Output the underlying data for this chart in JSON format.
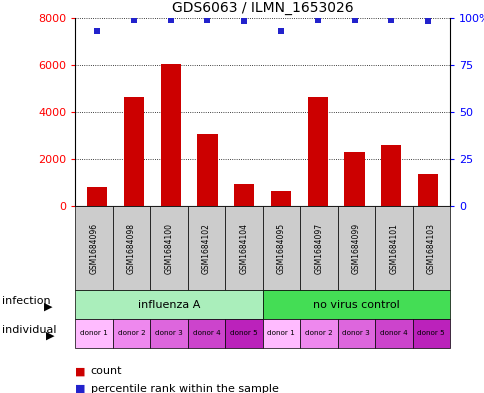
{
  "title": "GDS6063 / ILMN_1653026",
  "samples": [
    "GSM1684096",
    "GSM1684098",
    "GSM1684100",
    "GSM1684102",
    "GSM1684104",
    "GSM1684095",
    "GSM1684097",
    "GSM1684099",
    "GSM1684101",
    "GSM1684103"
  ],
  "counts": [
    800,
    4650,
    6050,
    3050,
    950,
    650,
    4650,
    2300,
    2600,
    1350
  ],
  "percentiles": [
    93,
    99,
    99,
    99,
    98,
    93,
    99,
    99,
    99,
    98
  ],
  "ylim_left": [
    0,
    8000
  ],
  "ylim_right": [
    0,
    100
  ],
  "yticks_left": [
    0,
    2000,
    4000,
    6000,
    8000
  ],
  "ytick_labels_right": [
    "0",
    "25",
    "50",
    "75",
    "100%"
  ],
  "bar_color": "#cc0000",
  "dot_color": "#2222cc",
  "infection_groups": [
    {
      "label": "influenza A",
      "start": 0,
      "end": 5,
      "color": "#aaeebb"
    },
    {
      "label": "no virus control",
      "start": 5,
      "end": 10,
      "color": "#44dd55"
    }
  ],
  "individual_labels": [
    "donor 1",
    "donor 2",
    "donor 3",
    "donor 4",
    "donor 5",
    "donor 1",
    "donor 2",
    "donor 3",
    "donor 4",
    "donor 5"
  ],
  "individual_colors": [
    "#ffbbff",
    "#ee88ee",
    "#dd66dd",
    "#cc44cc",
    "#bb22bb",
    "#ffbbff",
    "#ee88ee",
    "#dd66dd",
    "#cc44cc",
    "#bb22bb"
  ],
  "sample_box_color": "#cccccc",
  "infection_label": "infection",
  "individual_label": "individual"
}
